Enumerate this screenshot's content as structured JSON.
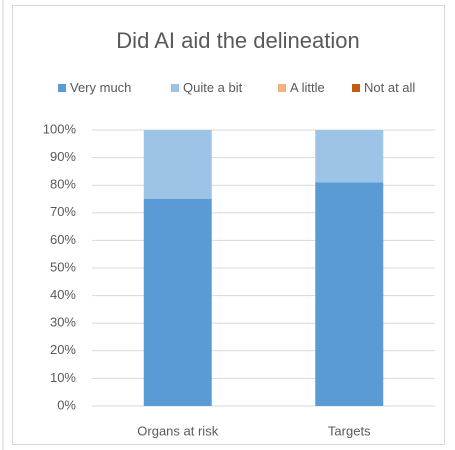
{
  "chart_data": {
    "type": "stacked_bar",
    "title": "Did AI aid the delineation",
    "categories": [
      "Organs at risk",
      "Targets"
    ],
    "series": [
      {
        "name": "Very much",
        "color": "#5b9bd5",
        "values": [
          75,
          81
        ]
      },
      {
        "name": "Quite a bit",
        "color": "#9dc3e6",
        "values": [
          25,
          19
        ]
      },
      {
        "name": "A little",
        "color": "#f4b183",
        "values": [
          0,
          0
        ]
      },
      {
        "name": "Not at all",
        "color": "#c55a11",
        "values": [
          0,
          0
        ]
      }
    ],
    "ylim": [
      0,
      100
    ],
    "yticks": [
      {
        "value": 0,
        "label": "0%"
      },
      {
        "value": 10,
        "label": "10%"
      },
      {
        "value": 20,
        "label": "20%"
      },
      {
        "value": 30,
        "label": "30%"
      },
      {
        "value": 40,
        "label": "40%"
      },
      {
        "value": 50,
        "label": "50%"
      },
      {
        "value": 60,
        "label": "60%"
      },
      {
        "value": 70,
        "label": "70%"
      },
      {
        "value": 80,
        "label": "80%"
      },
      {
        "value": 90,
        "label": "90%"
      },
      {
        "value": 100,
        "label": "100%"
      }
    ],
    "grid": true,
    "legend": "top"
  }
}
